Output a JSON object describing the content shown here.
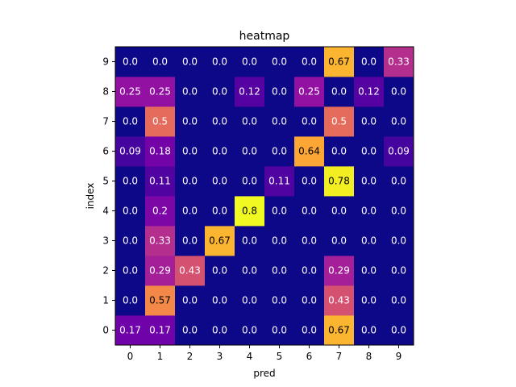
{
  "chart_data": {
    "type": "heatmap",
    "title": "heatmap",
    "xlabel": "pred",
    "ylabel": "index",
    "x_ticks": [
      "0",
      "1",
      "2",
      "3",
      "4",
      "5",
      "6",
      "7",
      "8",
      "9"
    ],
    "y_ticks": [
      "0",
      "1",
      "2",
      "3",
      "4",
      "5",
      "6",
      "7",
      "8",
      "9"
    ],
    "colormap": "plasma",
    "value_range": [
      0,
      0.8
    ],
    "rows": [
      {
        "index": "0",
        "values": [
          0.17,
          0.17,
          0.0,
          0.0,
          0.0,
          0.0,
          0.0,
          0.67,
          0.0,
          0.0
        ],
        "labels": [
          "0.17",
          "0.17",
          "0.0",
          "0.0",
          "0.0",
          "0.0",
          "0.0",
          "0.67",
          "0.0",
          "0.0"
        ]
      },
      {
        "index": "1",
        "values": [
          0.0,
          0.57,
          0.0,
          0.0,
          0.0,
          0.0,
          0.0,
          0.43,
          0.0,
          0.0
        ],
        "labels": [
          "0.0",
          "0.57",
          "0.0",
          "0.0",
          "0.0",
          "0.0",
          "0.0",
          "0.43",
          "0.0",
          "0.0"
        ]
      },
      {
        "index": "2",
        "values": [
          0.0,
          0.29,
          0.43,
          0.0,
          0.0,
          0.0,
          0.0,
          0.29,
          0.0,
          0.0
        ],
        "labels": [
          "0.0",
          "0.29",
          "0.43",
          "0.0",
          "0.0",
          "0.0",
          "0.0",
          "0.29",
          "0.0",
          "0.0"
        ]
      },
      {
        "index": "3",
        "values": [
          0.0,
          0.33,
          0.0,
          0.67,
          0.0,
          0.0,
          0.0,
          0.0,
          0.0,
          0.0
        ],
        "labels": [
          "0.0",
          "0.33",
          "0.0",
          "0.67",
          "0.0",
          "0.0",
          "0.0",
          "0.0",
          "0.0",
          "0.0"
        ]
      },
      {
        "index": "4",
        "values": [
          0.0,
          0.2,
          0.0,
          0.0,
          0.8,
          0.0,
          0.0,
          0.0,
          0.0,
          0.0
        ],
        "labels": [
          "0.0",
          "0.2",
          "0.0",
          "0.0",
          "0.8",
          "0.0",
          "0.0",
          "0.0",
          "0.0",
          "0.0"
        ]
      },
      {
        "index": "5",
        "values": [
          0.0,
          0.11,
          0.0,
          0.0,
          0.0,
          0.11,
          0.0,
          0.78,
          0.0,
          0.0
        ],
        "labels": [
          "0.0",
          "0.11",
          "0.0",
          "0.0",
          "0.0",
          "0.11",
          "0.0",
          "0.78",
          "0.0",
          "0.0"
        ]
      },
      {
        "index": "6",
        "values": [
          0.09,
          0.18,
          0.0,
          0.0,
          0.0,
          0.0,
          0.64,
          0.0,
          0.0,
          0.09
        ],
        "labels": [
          "0.09",
          "0.18",
          "0.0",
          "0.0",
          "0.0",
          "0.0",
          "0.64",
          "0.0",
          "0.0",
          "0.09"
        ]
      },
      {
        "index": "7",
        "values": [
          0.0,
          0.5,
          0.0,
          0.0,
          0.0,
          0.0,
          0.0,
          0.5,
          0.0,
          0.0
        ],
        "labels": [
          "0.0",
          "0.5",
          "0.0",
          "0.0",
          "0.0",
          "0.0",
          "0.0",
          "0.5",
          "0.0",
          "0.0"
        ]
      },
      {
        "index": "8",
        "values": [
          0.25,
          0.25,
          0.0,
          0.0,
          0.12,
          0.0,
          0.25,
          0.0,
          0.12,
          0.0
        ],
        "labels": [
          "0.25",
          "0.25",
          "0.0",
          "0.0",
          "0.12",
          "0.0",
          "0.25",
          "0.0",
          "0.12",
          "0.0"
        ]
      },
      {
        "index": "9",
        "values": [
          0.0,
          0.0,
          0.0,
          0.0,
          0.0,
          0.0,
          0.0,
          0.67,
          0.0,
          0.33
        ],
        "labels": [
          "0.0",
          "0.0",
          "0.0",
          "0.0",
          "0.0",
          "0.0",
          "0.0",
          "0.67",
          "0.0",
          "0.33"
        ]
      }
    ]
  }
}
